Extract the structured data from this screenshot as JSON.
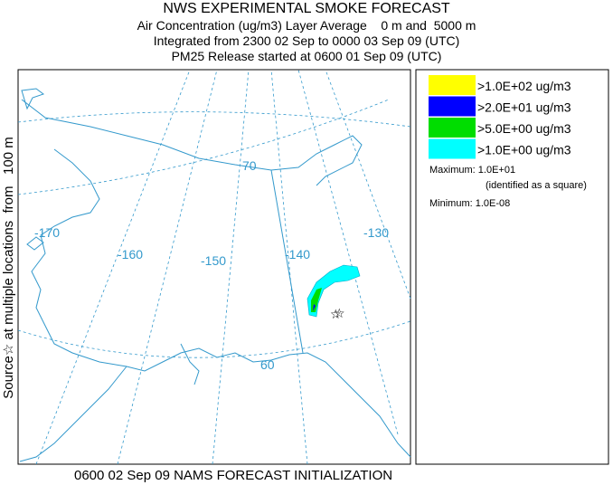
{
  "header": {
    "title": "NWS EXPERIMENTAL SMOKE FORECAST",
    "lines": [
      "Air Concentration (ug/m3) Layer Average    0 m and  5000 m",
      "Integrated from 2300 02 Sep to 0000 03 Sep 09 (UTC)",
      "PM25 Release started at 0600 01 Sep 09 (UTC)"
    ]
  },
  "side_label": "Source☆ at multiple locations  from   100 m",
  "map": {
    "longitude_labels": [
      "-170",
      "-160",
      "-150",
      "-140",
      "-130"
    ],
    "latitude_labels": [
      "70",
      "60"
    ]
  },
  "legend": {
    "entries": [
      {
        "label": ">1.0E+02 ug/m3",
        "color": "#ffff00"
      },
      {
        "label": ">2.0E+01 ug/m3",
        "color": "#0000ff"
      },
      {
        "label": ">5.0E+00 ug/m3",
        "color": "#00dd00"
      },
      {
        "label": ">1.0E+00 ug/m3",
        "color": "#00ffff"
      }
    ],
    "maximum": "Maximum: 1.0E+01",
    "maximum_note": "(identified as a square)",
    "minimum": "Minimum: 1.0E-08"
  },
  "footer": "0600 02 Sep 09 NAMS FORECAST INITIALIZATION"
}
